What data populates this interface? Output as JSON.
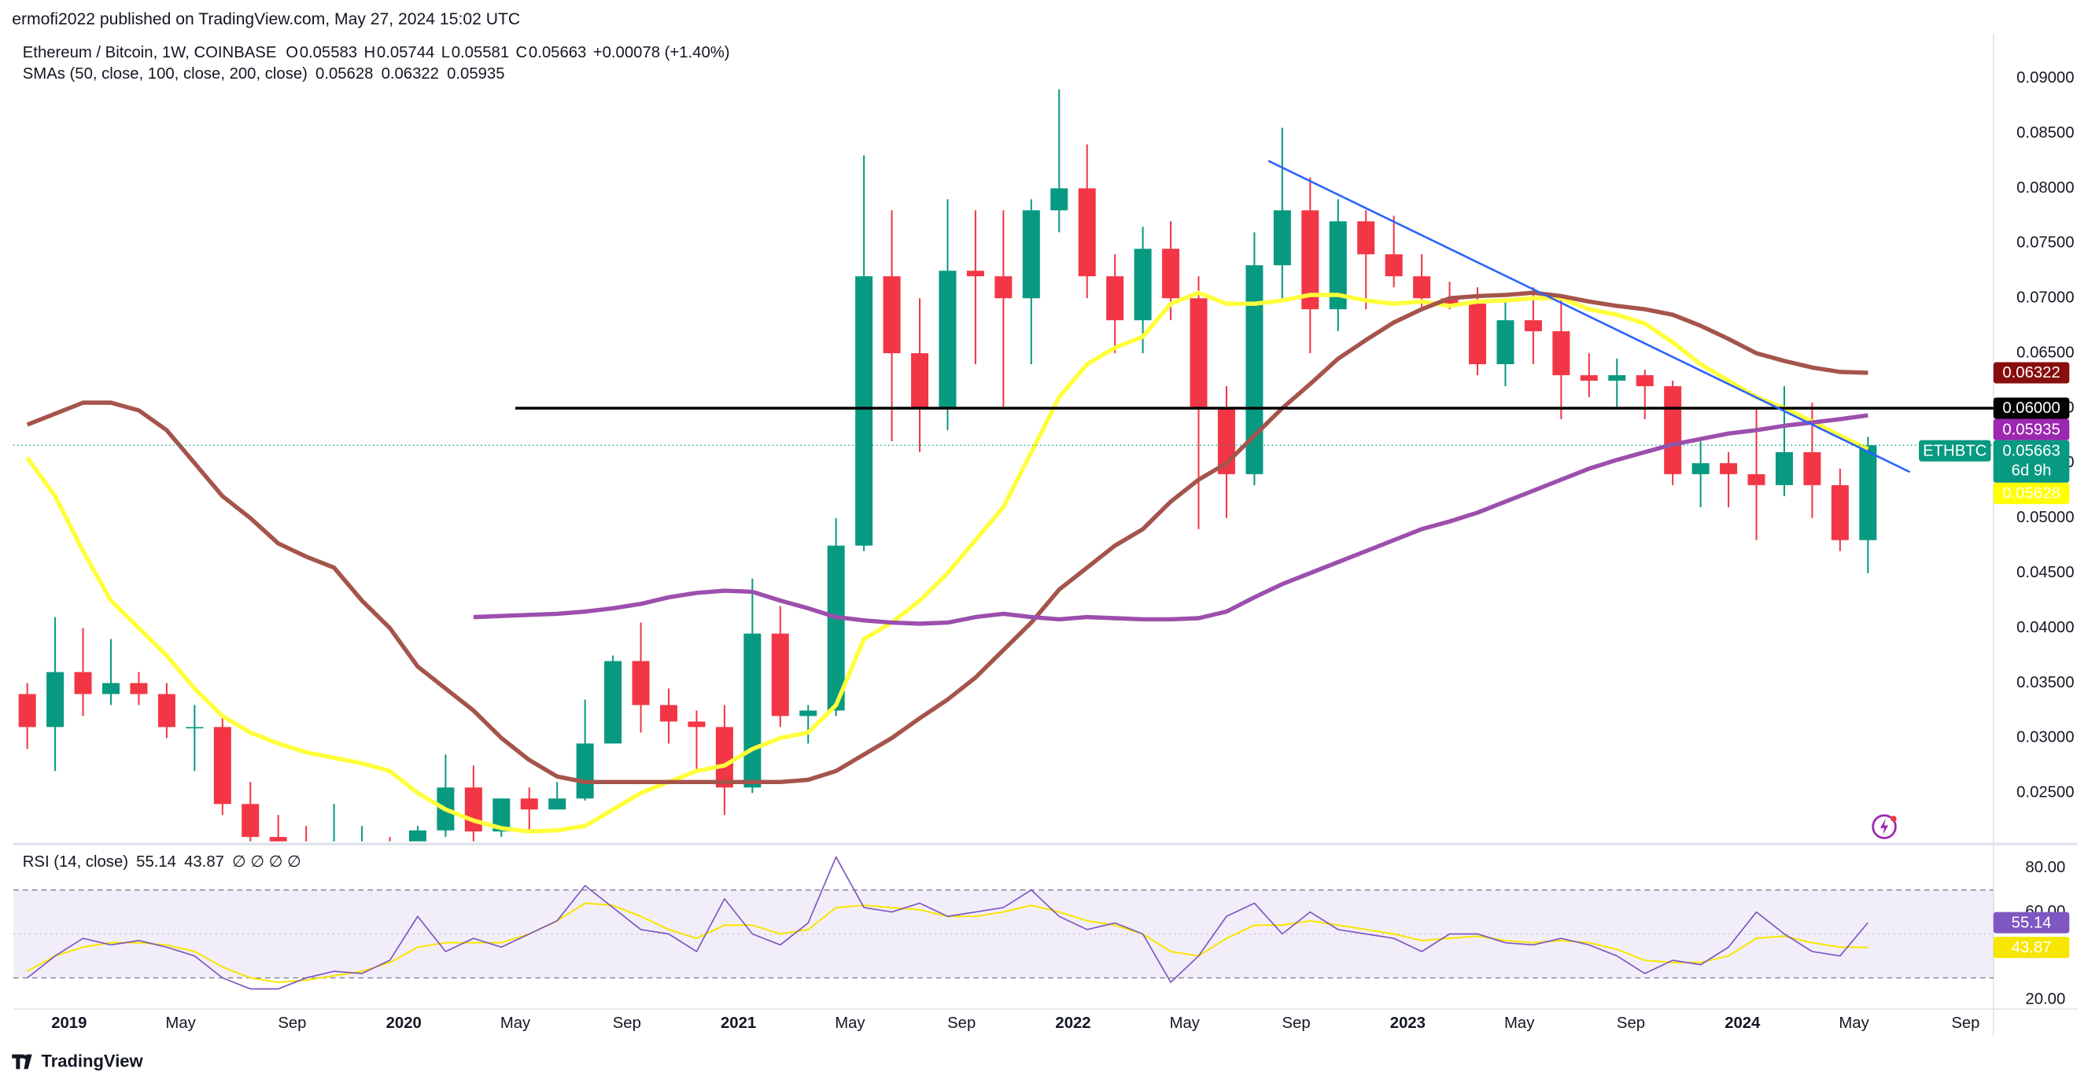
{
  "published": "ermofi2022 published on TradingView.com, May 27, 2024 15:02 UTC",
  "brand": "TradingView",
  "chart_data": [
    {
      "type": "candlestick",
      "title": "Ethereum / Bitcoin, 1W, COINBASE",
      "ohlc_legend": [
        {
          "name": "O",
          "value": 0.05583
        },
        {
          "name": "H",
          "value": 0.05744
        },
        {
          "name": "L",
          "value": 0.05581
        },
        {
          "name": "C",
          "value": 0.05663
        }
      ],
      "change": "+0.00078 (+1.40%)",
      "symbol": "ETHBTC",
      "countdown": "6d 9h",
      "up_color": "#089981",
      "down_color": "#f23645",
      "x": [
        "2018-11",
        "2018-12",
        "2019-01",
        "2019-02",
        "2019-03",
        "2019-04",
        "2019-05",
        "2019-06",
        "2019-07",
        "2019-08",
        "2019-09",
        "2019-10",
        "2019-11",
        "2019-12",
        "2020-01",
        "2020-02",
        "2020-03",
        "2020-04",
        "2020-05",
        "2020-06",
        "2020-07",
        "2020-08",
        "2020-09",
        "2020-10",
        "2020-11",
        "2020-12",
        "2021-01",
        "2021-02",
        "2021-03",
        "2021-04",
        "2021-05",
        "2021-06",
        "2021-07",
        "2021-08",
        "2021-09",
        "2021-10",
        "2021-11",
        "2021-12",
        "2022-01",
        "2022-02",
        "2022-03",
        "2022-04",
        "2022-05",
        "2022-06",
        "2022-07",
        "2022-08",
        "2022-09",
        "2022-10",
        "2022-11",
        "2022-12",
        "2023-01",
        "2023-02",
        "2023-03",
        "2023-04",
        "2023-05",
        "2023-06",
        "2023-07",
        "2023-08",
        "2023-09",
        "2023-10",
        "2023-11",
        "2023-12",
        "2024-01",
        "2024-02",
        "2024-03",
        "2024-04",
        "2024-05"
      ],
      "open": [
        0.034,
        0.031,
        0.036,
        0.034,
        0.035,
        0.034,
        0.031,
        0.031,
        0.024,
        0.021,
        0.02,
        0.018,
        0.02,
        0.02,
        0.018,
        0.0216,
        0.0255,
        0.0215,
        0.0245,
        0.0235,
        0.0245,
        0.0295,
        0.037,
        0.033,
        0.0315,
        0.031,
        0.0255,
        0.0395,
        0.032,
        0.0325,
        0.0475,
        0.072,
        0.065,
        0.06,
        0.0725,
        0.072,
        0.07,
        0.078,
        0.08,
        0.072,
        0.068,
        0.0745,
        0.07,
        0.06,
        0.054,
        0.073,
        0.078,
        0.069,
        0.077,
        0.074,
        0.072,
        0.07,
        0.0695,
        0.064,
        0.068,
        0.067,
        0.063,
        0.0625,
        0.063,
        0.062,
        0.054,
        0.055,
        0.054,
        0.053,
        0.056,
        0.053,
        0.048
      ],
      "high": [
        0.035,
        0.041,
        0.04,
        0.039,
        0.036,
        0.035,
        0.033,
        0.032,
        0.026,
        0.023,
        0.022,
        0.024,
        0.022,
        0.021,
        0.022,
        0.0285,
        0.0275,
        0.0245,
        0.0255,
        0.026,
        0.0335,
        0.0375,
        0.0405,
        0.0345,
        0.0325,
        0.033,
        0.0445,
        0.042,
        0.033,
        0.05,
        0.083,
        0.078,
        0.07,
        0.079,
        0.078,
        0.078,
        0.079,
        0.089,
        0.084,
        0.074,
        0.0765,
        0.077,
        0.072,
        0.062,
        0.076,
        0.0855,
        0.081,
        0.079,
        0.078,
        0.0775,
        0.074,
        0.0715,
        0.071,
        0.07,
        0.071,
        0.07,
        0.065,
        0.0645,
        0.0635,
        0.0625,
        0.057,
        0.056,
        0.06,
        0.062,
        0.0605,
        0.0545,
        0.0574
      ],
      "low": [
        0.029,
        0.027,
        0.032,
        0.033,
        0.033,
        0.03,
        0.027,
        0.023,
        0.02,
        0.019,
        0.016,
        0.017,
        0.019,
        0.018,
        0.018,
        0.021,
        0.0205,
        0.021,
        0.0215,
        0.0235,
        0.0243,
        0.0295,
        0.0305,
        0.0295,
        0.027,
        0.023,
        0.025,
        0.031,
        0.0295,
        0.032,
        0.047,
        0.057,
        0.056,
        0.058,
        0.064,
        0.06,
        0.064,
        0.076,
        0.07,
        0.065,
        0.065,
        0.068,
        0.049,
        0.05,
        0.053,
        0.07,
        0.065,
        0.067,
        0.069,
        0.071,
        0.069,
        0.069,
        0.063,
        0.062,
        0.064,
        0.059,
        0.061,
        0.06,
        0.059,
        0.053,
        0.051,
        0.051,
        0.048,
        0.052,
        0.05,
        0.047,
        0.045
      ],
      "close": [
        0.031,
        0.036,
        0.034,
        0.035,
        0.034,
        0.031,
        0.031,
        0.024,
        0.021,
        0.02,
        0.018,
        0.02,
        0.02,
        0.018,
        0.0216,
        0.0255,
        0.0215,
        0.0245,
        0.0235,
        0.0245,
        0.0295,
        0.037,
        0.033,
        0.0315,
        0.031,
        0.0255,
        0.0395,
        0.032,
        0.0325,
        0.0475,
        0.072,
        0.065,
        0.06,
        0.0725,
        0.072,
        0.07,
        0.078,
        0.08,
        0.072,
        0.068,
        0.0745,
        0.07,
        0.06,
        0.054,
        0.073,
        0.078,
        0.069,
        0.077,
        0.074,
        0.072,
        0.07,
        0.0695,
        0.064,
        0.068,
        0.067,
        0.063,
        0.0625,
        0.063,
        0.062,
        0.054,
        0.055,
        0.054,
        0.053,
        0.056,
        0.053,
        0.048,
        0.05663
      ],
      "overlay_title": "SMAs (50, close, 100, close, 200, close)",
      "series": [
        {
          "color": "#ffff3b",
          "legend_color": "#e6d800",
          "box_text": "#131722",
          "values": [
            0.0555,
            0.052,
            0.047,
            0.0425,
            0.04,
            0.0375,
            0.0345,
            0.032,
            0.0305,
            0.0295,
            0.0287,
            0.0282,
            0.0277,
            0.027,
            0.025,
            0.0235,
            0.0225,
            0.0218,
            0.0215,
            0.0216,
            0.022,
            0.0235,
            0.025,
            0.026,
            0.027,
            0.0275,
            0.029,
            0.03,
            0.0305,
            0.033,
            0.039,
            0.0405,
            0.0425,
            0.045,
            0.048,
            0.051,
            0.056,
            0.061,
            0.064,
            0.0655,
            0.0665,
            0.0695,
            0.0705,
            0.0695,
            0.0695,
            0.0698,
            0.0703,
            0.0703,
            0.0698,
            0.0695,
            0.0697,
            0.0693,
            0.0697,
            0.0698,
            0.07,
            0.07,
            0.069,
            0.0685,
            0.0677,
            0.066,
            0.064,
            0.0625,
            0.061,
            0.06,
            0.0588,
            0.0575,
            0.05628
          ]
        },
        {
          "color": "#a5544c",
          "legend_color": "#880e0e",
          "box_text": "#ffffff",
          "values": [
            0.0585,
            0.0595,
            0.0605,
            0.0605,
            0.0598,
            0.058,
            0.055,
            0.052,
            0.05,
            0.0477,
            0.0465,
            0.0455,
            0.0425,
            0.04,
            0.0365,
            0.0345,
            0.0325,
            0.03,
            0.028,
            0.0265,
            0.026,
            0.026,
            0.026,
            0.026,
            0.026,
            0.026,
            0.026,
            0.026,
            0.0262,
            0.027,
            0.0285,
            0.03,
            0.0318,
            0.0335,
            0.0355,
            0.038,
            0.0405,
            0.0435,
            0.0455,
            0.0475,
            0.049,
            0.0515,
            0.0535,
            0.055,
            0.0575,
            0.06,
            0.0622,
            0.0645,
            0.0662,
            0.0678,
            0.069,
            0.07,
            0.0702,
            0.0703,
            0.0705,
            0.0702,
            0.0697,
            0.0693,
            0.069,
            0.0685,
            0.0675,
            0.0663,
            0.065,
            0.0643,
            0.0637,
            0.0633,
            0.06322
          ]
        },
        {
          "color": "#9c4fad",
          "legend_color": "#9c27b0",
          "box_text": "#ffffff",
          "values": [
            null,
            null,
            null,
            null,
            null,
            null,
            null,
            null,
            null,
            null,
            null,
            null,
            null,
            null,
            null,
            null,
            0.041,
            0.0411,
            0.0412,
            0.0413,
            0.0415,
            0.0418,
            0.0422,
            0.0428,
            0.0432,
            0.0434,
            0.0433,
            0.0425,
            0.0418,
            0.041,
            0.0407,
            0.0405,
            0.0404,
            0.0405,
            0.041,
            0.0413,
            0.041,
            0.0408,
            0.041,
            0.0409,
            0.0408,
            0.0408,
            0.0409,
            0.0415,
            0.0428,
            0.044,
            0.045,
            0.046,
            0.047,
            0.048,
            0.049,
            0.0497,
            0.0505,
            0.0515,
            0.0525,
            0.0535,
            0.0545,
            0.0553,
            0.056,
            0.0567,
            0.0572,
            0.0577,
            0.058,
            0.0584,
            0.0587,
            0.059,
            0.05935
          ]
        }
      ],
      "hline": {
        "value": 0.06,
        "label": "0.06000",
        "from": "2020-05",
        "color": "#000000"
      },
      "trendline": {
        "x": [
          "2022-08",
          "2024-07"
        ],
        "y": [
          0.0825,
          0.0542
        ],
        "color": "#2962ff"
      },
      "ylim": [
        0.0206,
        0.0941
      ],
      "yticks": [
        {
          "value": 0.025,
          "label": "0.02500"
        },
        {
          "value": 0.03,
          "label": "0.03000"
        },
        {
          "value": 0.035,
          "label": "0.03500"
        },
        {
          "value": 0.04,
          "label": "0.04000"
        },
        {
          "value": 0.045,
          "label": "0.04500"
        },
        {
          "value": 0.05,
          "label": "0.05000"
        },
        {
          "value": 0.055,
          "label": "0.05500"
        },
        {
          "value": 0.06,
          "label": "0.06000"
        },
        {
          "value": 0.065,
          "label": "0.06500"
        },
        {
          "value": 0.07,
          "label": "0.07000"
        },
        {
          "value": 0.075,
          "label": "0.07500"
        },
        {
          "value": 0.08,
          "label": "0.08000"
        },
        {
          "value": 0.085,
          "label": "0.08500"
        },
        {
          "value": 0.09,
          "label": "0.09000"
        }
      ],
      "xlim": [
        "2018-11",
        "2024-10"
      ],
      "xticks": [
        {
          "value": "2019-01",
          "label": "2019"
        },
        {
          "value": "2019-05",
          "label": "May"
        },
        {
          "value": "2019-09",
          "label": "Sep"
        },
        {
          "value": "2020-01",
          "label": "2020"
        },
        {
          "value": "2020-05",
          "label": "May"
        },
        {
          "value": "2020-09",
          "label": "Sep"
        },
        {
          "value": "2021-01",
          "label": "2021"
        },
        {
          "value": "2021-05",
          "label": "May"
        },
        {
          "value": "2021-09",
          "label": "Sep"
        },
        {
          "value": "2022-01",
          "label": "2022"
        },
        {
          "value": "2022-05",
          "label": "May"
        },
        {
          "value": "2022-09",
          "label": "Sep"
        },
        {
          "value": "2023-01",
          "label": "2023"
        },
        {
          "value": "2023-05",
          "label": "May"
        },
        {
          "value": "2023-09",
          "label": "Sep"
        },
        {
          "value": "2024-01",
          "label": "2024"
        },
        {
          "value": "2024-05",
          "label": "May"
        },
        {
          "value": "2024-09",
          "label": "Sep"
        }
      ],
      "grid": false
    },
    {
      "type": "line",
      "title": "RSI (14, close)",
      "extra": "∅ ∅ ∅ ∅",
      "x": [
        "2018-11",
        "2018-12",
        "2019-01",
        "2019-02",
        "2019-03",
        "2019-04",
        "2019-05",
        "2019-06",
        "2019-07",
        "2019-08",
        "2019-09",
        "2019-10",
        "2019-11",
        "2019-12",
        "2020-01",
        "2020-02",
        "2020-03",
        "2020-04",
        "2020-05",
        "2020-06",
        "2020-07",
        "2020-08",
        "2020-09",
        "2020-10",
        "2020-11",
        "2020-12",
        "2021-01",
        "2021-02",
        "2021-03",
        "2021-04",
        "2021-05",
        "2021-06",
        "2021-07",
        "2021-08",
        "2021-09",
        "2021-10",
        "2021-11",
        "2021-12",
        "2022-01",
        "2022-02",
        "2022-03",
        "2022-04",
        "2022-05",
        "2022-06",
        "2022-07",
        "2022-08",
        "2022-09",
        "2022-10",
        "2022-11",
        "2022-12",
        "2023-01",
        "2023-02",
        "2023-03",
        "2023-04",
        "2023-05",
        "2023-06",
        "2023-07",
        "2023-08",
        "2023-09",
        "2023-10",
        "2023-11",
        "2023-12",
        "2024-01",
        "2024-02",
        "2024-03",
        "2024-04",
        "2024-05"
      ],
      "series": [
        {
          "color": "#7e57c2",
          "box_text": "#ffffff",
          "values": [
            30,
            40,
            48,
            45,
            47,
            44,
            40,
            30,
            25,
            25,
            30,
            33,
            32,
            38,
            58,
            42,
            48,
            44,
            50,
            56,
            72,
            62,
            52,
            50,
            42,
            66,
            50,
            45,
            55,
            85,
            62,
            60,
            64,
            58,
            60,
            62,
            70,
            58,
            52,
            55,
            50,
            28,
            40,
            58,
            64,
            50,
            60,
            52,
            50,
            48,
            42,
            50,
            50,
            46,
            45,
            48,
            45,
            40,
            32,
            38,
            36,
            44,
            60,
            50,
            42,
            40,
            55.14
          ]
        },
        {
          "color": "#f7e600",
          "box_text": "#131722",
          "values": [
            33,
            40,
            44,
            46,
            46,
            45,
            42,
            35,
            30,
            28,
            29,
            31,
            33,
            37,
            44,
            46,
            46,
            46,
            50,
            56,
            64,
            63,
            58,
            52,
            48,
            54,
            54,
            50,
            52,
            62,
            63,
            62,
            61,
            58,
            58,
            60,
            63,
            60,
            56,
            54,
            50,
            42,
            40,
            48,
            54,
            54,
            56,
            54,
            52,
            50,
            47,
            48,
            49,
            47,
            46,
            47,
            46,
            43,
            38,
            37,
            37,
            40,
            48,
            49,
            46,
            44,
            43.87
          ]
        }
      ],
      "band": [
        30,
        70
      ],
      "ylim": [
        15.8,
        89.7
      ],
      "yticks": [
        {
          "value": 20,
          "label": "20.00"
        },
        {
          "value": 60,
          "label": "60.00"
        },
        {
          "value": 80,
          "label": "80.00"
        }
      ],
      "xlim": [
        "2018-11",
        "2024-10"
      ]
    }
  ]
}
